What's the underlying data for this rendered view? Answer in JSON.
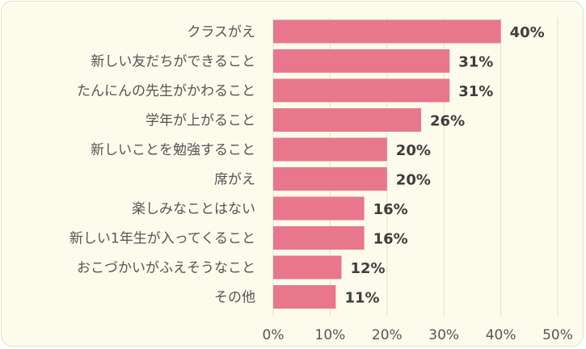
{
  "chart_data": {
    "type": "bar",
    "orientation": "horizontal",
    "title": "",
    "xlabel": "",
    "ylabel": "",
    "categories": [
      "クラスがえ",
      "新しい友だちができること",
      "たんにんの先生がかわること",
      "学年が上がること",
      "新しいことを勉強すること",
      "席がえ",
      "楽しみなことはない",
      "新しい1年生が入ってくること",
      "おこづかいがふえそうなこと",
      "その他"
    ],
    "values": [
      40,
      31,
      31,
      26,
      20,
      20,
      16,
      16,
      12,
      11
    ],
    "value_labels": [
      "40%",
      "31%",
      "31%",
      "26%",
      "20%",
      "20%",
      "16%",
      "16%",
      "12%",
      "11%"
    ],
    "xlim": [
      0,
      50
    ],
    "xticks": [
      0,
      10,
      20,
      30,
      40,
      50
    ],
    "xtick_labels": [
      "0%",
      "10%",
      "20%",
      "30%",
      "40%",
      "50%"
    ],
    "grid": "vertical",
    "legend": "none",
    "colors": {
      "bar": "#e8778d",
      "background": "#fdfbec",
      "grid": "#e4e1cc",
      "text": "#555555",
      "value_text": "#3d3d3d"
    }
  }
}
